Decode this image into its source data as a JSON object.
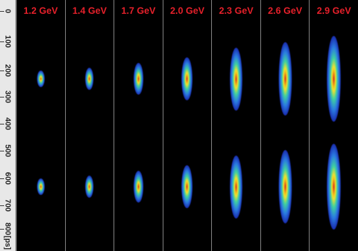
{
  "energies": [
    "1.2 GeV",
    "1.4 GeV",
    "1.7 GeV",
    "2.0 GeV",
    "2.3 GeV",
    "2.6 GeV",
    "2.9 GeV"
  ],
  "axis": {
    "ticks": [
      "0",
      "100",
      "200",
      "300",
      "400",
      "500",
      "600",
      "700",
      "800"
    ],
    "unit": "[ps]"
  },
  "colors": {
    "label": "#e4202a",
    "background": "#000000",
    "axis_background": "#e8e8e8"
  },
  "spots": {
    "relative_length": [
      0.18,
      0.25,
      0.35,
      0.48,
      0.7,
      0.82,
      0.95
    ],
    "relative_width": [
      0.55,
      0.6,
      0.7,
      0.8,
      0.9,
      0.95,
      1.0
    ]
  }
}
